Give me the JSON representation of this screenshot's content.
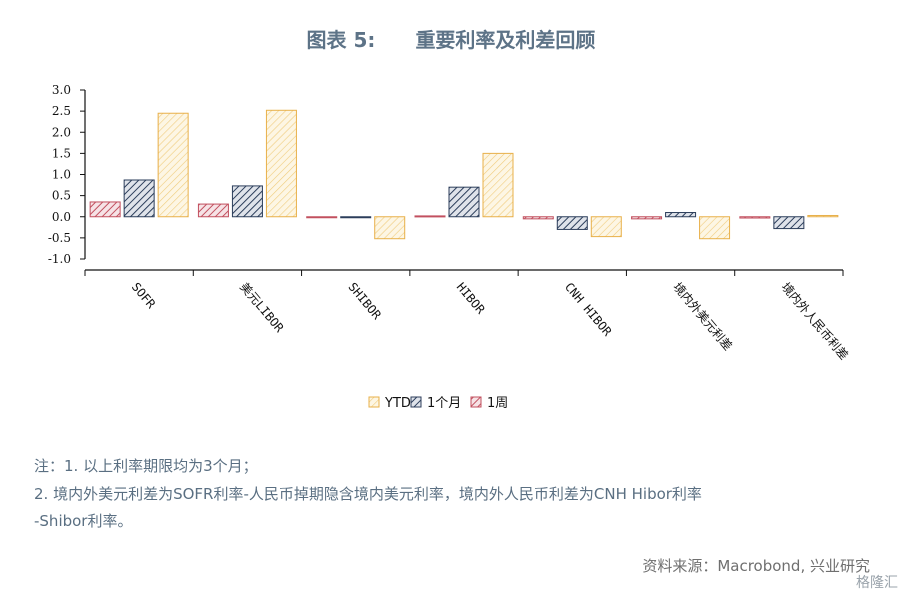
{
  "figure_label": "图表 5:",
  "title": "重要利率及利差回顾",
  "chart_data": {
    "type": "bar",
    "categories": [
      "SOFR",
      "美元LIBOR",
      "SHIBOR",
      "HIBOR",
      "CNH HIBOR",
      "境内外美元利差",
      "境内外人民币利差"
    ],
    "series": [
      {
        "name": "1周",
        "color": "#c2505f",
        "values": [
          0.35,
          0.3,
          -0.02,
          0.02,
          -0.05,
          -0.05,
          -0.03
        ]
      },
      {
        "name": "1个月",
        "color": "#2c3e5b",
        "values": [
          0.87,
          0.73,
          -0.02,
          0.7,
          -0.3,
          0.1,
          -0.28
        ]
      },
      {
        "name": "YTD",
        "color": "#e8b04a",
        "values": [
          2.45,
          2.52,
          -0.52,
          1.5,
          -0.47,
          -0.52,
          0.03
        ]
      }
    ],
    "ylim": [
      -1.0,
      3.0
    ],
    "yticks": [
      "3.0",
      "2.5",
      "2.0",
      "1.5",
      "1.0",
      "0.5",
      "0.0",
      "-0.5",
      "-1.0"
    ],
    "legend": [
      "YTD",
      "1个月",
      "1周"
    ],
    "legend_position": "bottom-center"
  },
  "notes": {
    "line1": "注：1. 以上利率期限均为3个月；",
    "line2": "2. 境内外美元利差为SOFR利率-人民币掉期隐含境内美元利率，境内外人民币利差为CNH Hibor利率",
    "line3": "-Shibor利率。"
  },
  "source": "资料来源：Macrobond, 兴业研究",
  "watermark": "格隆汇"
}
